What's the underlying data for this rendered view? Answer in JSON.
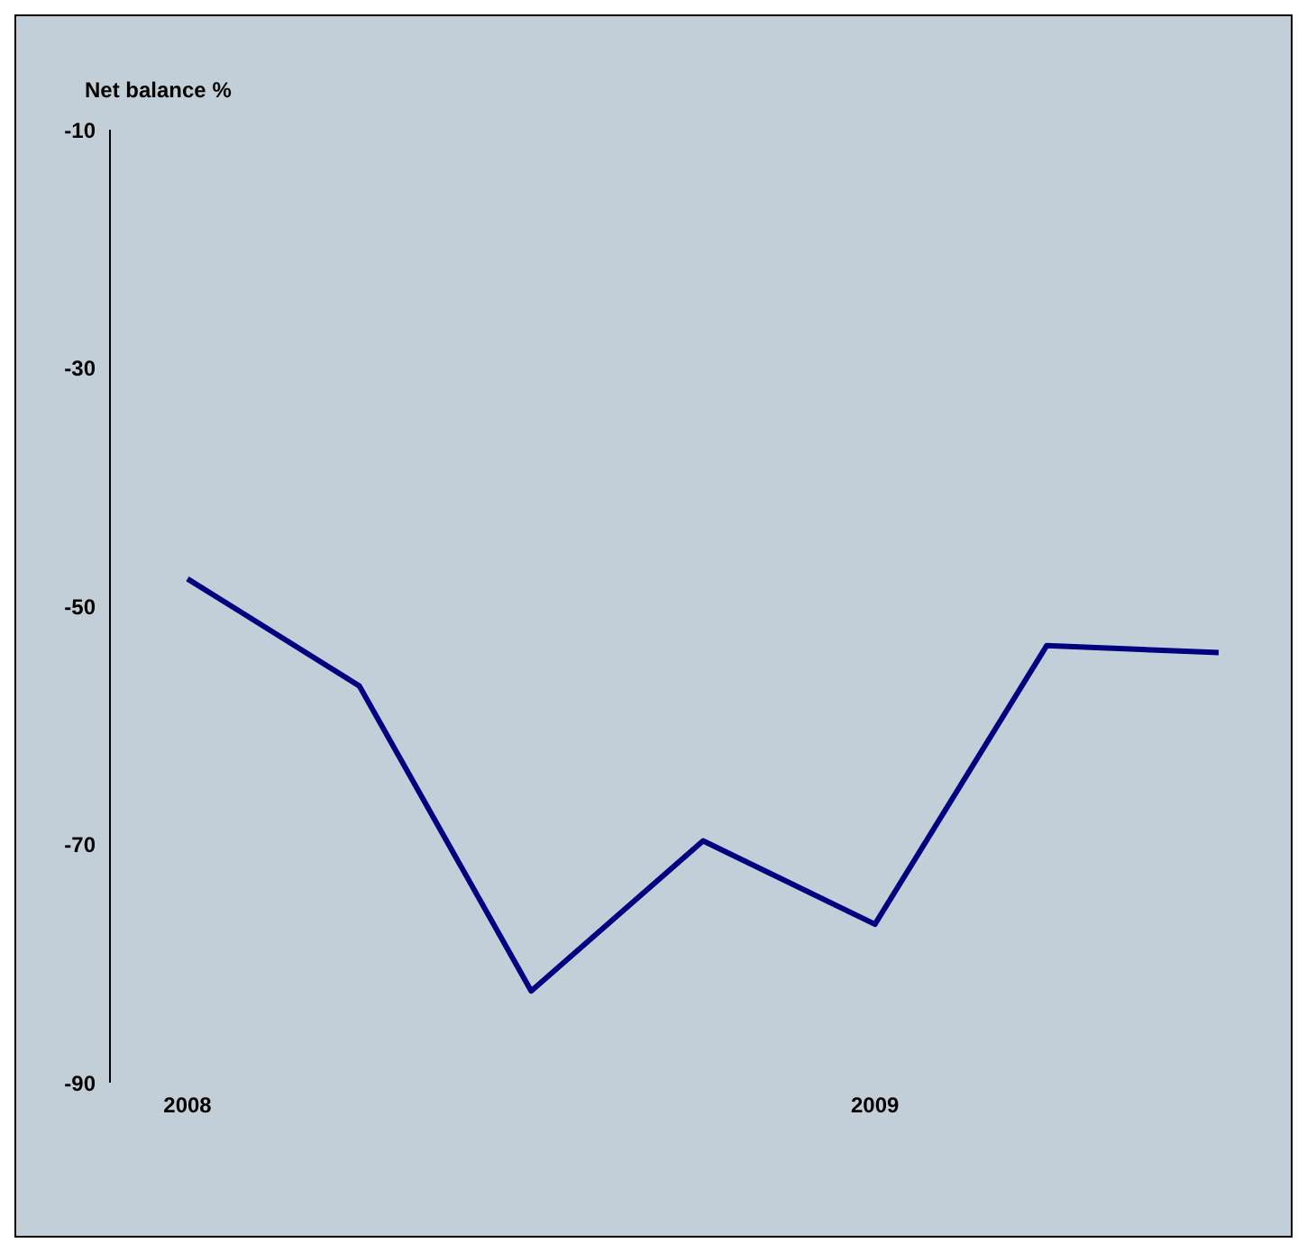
{
  "chart_data": {
    "type": "line",
    "ylabel": "Net balance %",
    "categories": [
      "2008",
      null,
      null,
      null,
      "2009",
      null,
      null
    ],
    "series": [
      {
        "color": "#000080",
        "values": [
          -47.7,
          -56.7,
          -82.3,
          -69.7,
          -76.7,
          -53.3,
          -53.9
        ]
      }
    ],
    "ylim": [
      -90,
      -10
    ],
    "yticks": [
      -90,
      -70,
      -50,
      -30,
      -10
    ],
    "marker": "none",
    "line_style": "solid"
  }
}
